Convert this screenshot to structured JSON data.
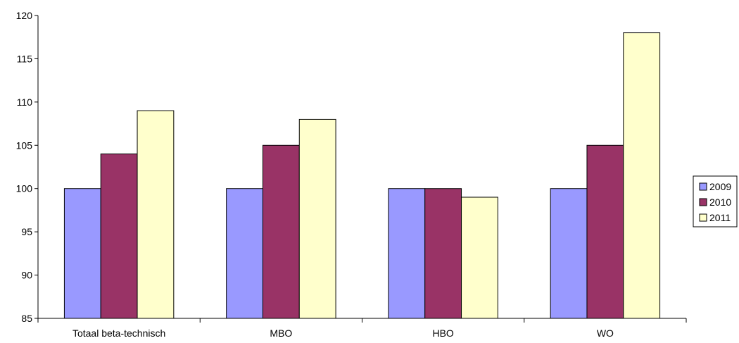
{
  "chart_data": {
    "type": "bar",
    "title": "",
    "xlabel": "",
    "ylabel": "",
    "categories": [
      "Totaal beta-technisch",
      "MBO",
      "HBO",
      "WO"
    ],
    "series": [
      {
        "name": "2009",
        "values": [
          100,
          100,
          100,
          100
        ],
        "color": "#9999ff"
      },
      {
        "name": "2010",
        "values": [
          104,
          105,
          100,
          105
        ],
        "color": "#993366"
      },
      {
        "name": "2011",
        "values": [
          109,
          108,
          99,
          118
        ],
        "color": "#ffffcc"
      }
    ],
    "ylim": [
      85,
      120
    ],
    "yticks": [
      85,
      90,
      95,
      100,
      105,
      110,
      115,
      120
    ],
    "grid": false,
    "legend_position": "right"
  }
}
